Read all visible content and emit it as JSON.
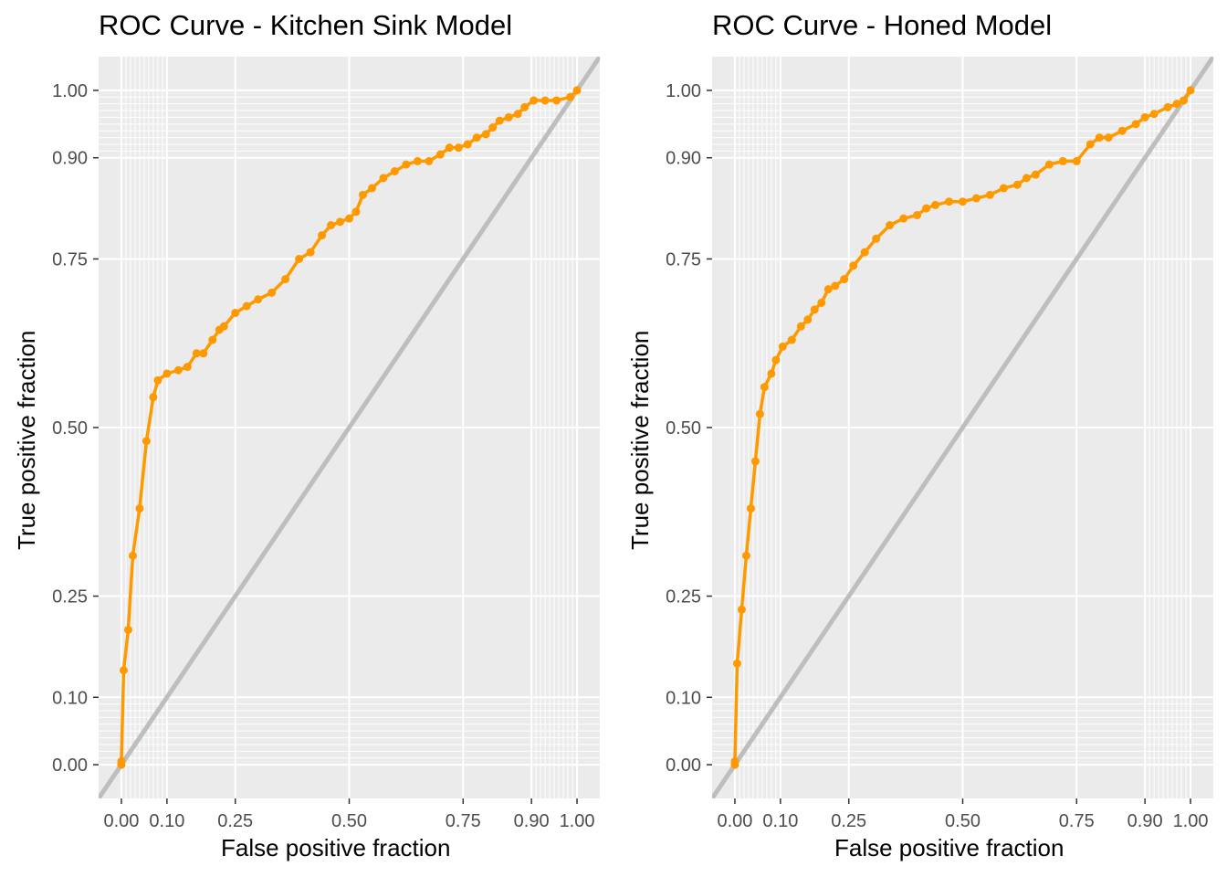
{
  "colors": {
    "panel_bg": "#EBEBEB",
    "grid": "#FFFFFF",
    "curve": "#FF9900",
    "diagonal": "#BEBEBE",
    "tick_text": "#4D4D4D"
  },
  "chart_data": [
    {
      "type": "line",
      "title": "ROC Curve - Kitchen Sink Model",
      "xlabel": "False positive fraction",
      "ylabel": "True positive fraction",
      "xlim": [
        -0.05,
        1.05
      ],
      "ylim": [
        -0.05,
        1.05
      ],
      "xticks": [
        0,
        0.1,
        0.25,
        0.5,
        0.75,
        0.9,
        1
      ],
      "xtick_labels": [
        "0.00",
        "0.10",
        "0.25",
        "0.50",
        "0.75",
        "0.90",
        "1.00"
      ],
      "yticks": [
        0,
        0.1,
        0.25,
        0.5,
        0.75,
        0.9,
        1
      ],
      "ytick_labels": [
        "0.00",
        "0.10",
        "0.25",
        "0.50",
        "0.75",
        "0.90",
        "1.00"
      ],
      "reference_line": {
        "x": [
          -0.05,
          1.05
        ],
        "y": [
          -0.05,
          1.05
        ]
      },
      "series": [
        {
          "name": "ROC",
          "x": [
            0,
            0,
            0.005,
            0.015,
            0.025,
            0.04,
            0.055,
            0.07,
            0.08,
            0.1,
            0.125,
            0.145,
            0.165,
            0.18,
            0.2,
            0.215,
            0.225,
            0.25,
            0.275,
            0.3,
            0.33,
            0.36,
            0.39,
            0.415,
            0.44,
            0.46,
            0.48,
            0.5,
            0.515,
            0.53,
            0.55,
            0.575,
            0.6,
            0.625,
            0.65,
            0.675,
            0.7,
            0.72,
            0.74,
            0.76,
            0.78,
            0.8,
            0.815,
            0.83,
            0.85,
            0.87,
            0.885,
            0.905,
            0.93,
            0.955,
            0.985,
            1
          ],
          "y": [
            0,
            0.005,
            0.14,
            0.2,
            0.31,
            0.38,
            0.48,
            0.545,
            0.57,
            0.58,
            0.585,
            0.59,
            0.61,
            0.61,
            0.63,
            0.645,
            0.65,
            0.67,
            0.68,
            0.69,
            0.7,
            0.72,
            0.75,
            0.76,
            0.785,
            0.8,
            0.805,
            0.81,
            0.82,
            0.845,
            0.855,
            0.87,
            0.88,
            0.89,
            0.895,
            0.895,
            0.905,
            0.915,
            0.915,
            0.92,
            0.93,
            0.935,
            0.945,
            0.955,
            0.96,
            0.965,
            0.975,
            0.985,
            0.985,
            0.985,
            0.99,
            1
          ]
        }
      ]
    },
    {
      "type": "line",
      "title": "ROC Curve - Honed Model",
      "xlabel": "False positive fraction",
      "ylabel": "True positive fraction",
      "xlim": [
        -0.05,
        1.05
      ],
      "ylim": [
        -0.05,
        1.05
      ],
      "xticks": [
        0,
        0.1,
        0.25,
        0.5,
        0.75,
        0.9,
        1
      ],
      "xtick_labels": [
        "0.00",
        "0.10",
        "0.25",
        "0.50",
        "0.75",
        "0.90",
        "1.00"
      ],
      "yticks": [
        0,
        0.1,
        0.25,
        0.5,
        0.75,
        0.9,
        1
      ],
      "ytick_labels": [
        "0.00",
        "0.10",
        "0.25",
        "0.50",
        "0.75",
        "0.90",
        "1.00"
      ],
      "reference_line": {
        "x": [
          -0.05,
          1.05
        ],
        "y": [
          -0.05,
          1.05
        ]
      },
      "series": [
        {
          "name": "ROC",
          "x": [
            0,
            0,
            0.005,
            0.015,
            0.025,
            0.035,
            0.045,
            0.055,
            0.065,
            0.08,
            0.09,
            0.105,
            0.125,
            0.145,
            0.16,
            0.175,
            0.19,
            0.205,
            0.22,
            0.24,
            0.26,
            0.285,
            0.31,
            0.34,
            0.37,
            0.4,
            0.42,
            0.44,
            0.47,
            0.5,
            0.53,
            0.56,
            0.59,
            0.62,
            0.64,
            0.66,
            0.69,
            0.72,
            0.75,
            0.78,
            0.8,
            0.82,
            0.85,
            0.88,
            0.9,
            0.92,
            0.95,
            0.97,
            0.985,
            1
          ],
          "y": [
            0,
            0.005,
            0.15,
            0.23,
            0.31,
            0.38,
            0.45,
            0.52,
            0.56,
            0.58,
            0.6,
            0.62,
            0.63,
            0.65,
            0.66,
            0.675,
            0.685,
            0.705,
            0.71,
            0.72,
            0.74,
            0.76,
            0.78,
            0.8,
            0.81,
            0.815,
            0.825,
            0.83,
            0.835,
            0.835,
            0.84,
            0.845,
            0.855,
            0.86,
            0.87,
            0.875,
            0.89,
            0.895,
            0.895,
            0.92,
            0.93,
            0.93,
            0.94,
            0.95,
            0.96,
            0.965,
            0.975,
            0.98,
            0.985,
            1
          ]
        }
      ]
    }
  ]
}
